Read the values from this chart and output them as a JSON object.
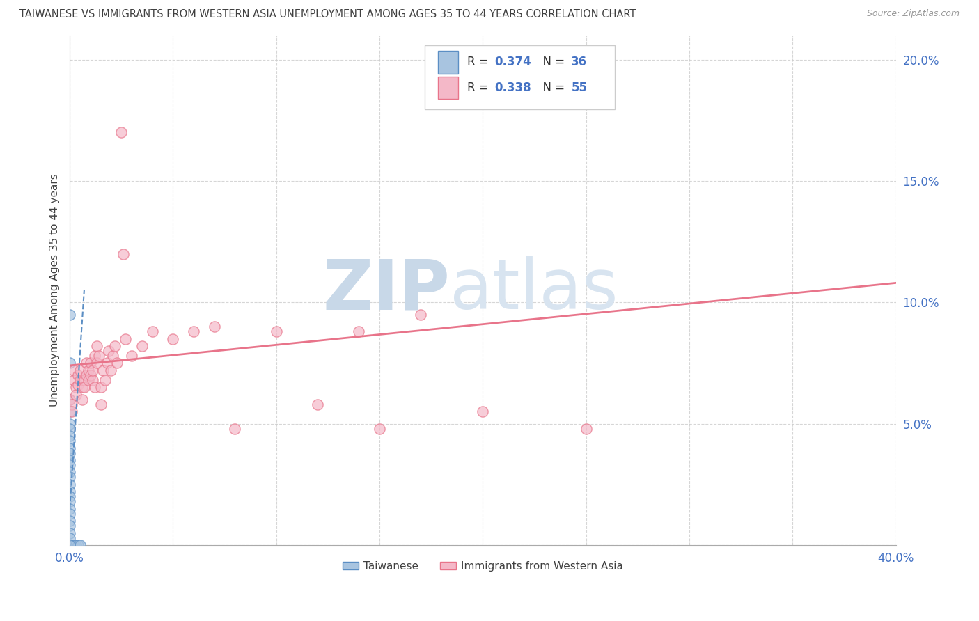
{
  "title": "TAIWANESE VS IMMIGRANTS FROM WESTERN ASIA UNEMPLOYMENT AMONG AGES 35 TO 44 YEARS CORRELATION CHART",
  "source": "Source: ZipAtlas.com",
  "ylabel": "Unemployment Among Ages 35 to 44 years",
  "xlim": [
    0.0,
    0.4
  ],
  "ylim": [
    0.0,
    0.21
  ],
  "xticks": [
    0.0,
    0.05,
    0.1,
    0.15,
    0.2,
    0.25,
    0.3,
    0.35,
    0.4
  ],
  "yticks": [
    0.0,
    0.05,
    0.1,
    0.15,
    0.2
  ],
  "taiwanese_R": 0.374,
  "taiwanese_N": 36,
  "western_asia_R": 0.338,
  "western_asia_N": 55,
  "taiwanese_color": "#a8c4e0",
  "western_asia_color": "#f4b8c8",
  "taiwanese_line_color": "#5b8ec4",
  "western_asia_line_color": "#e8748a",
  "blue_text_color": "#4472c4",
  "title_color": "#404040",
  "watermark_zip_color": "#c8d8e8",
  "watermark_atlas_color": "#d8e4f0",
  "background_color": "#ffffff",
  "taiwanese_points": [
    [
      0.0,
      0.095
    ],
    [
      0.0,
      0.075
    ],
    [
      0.0,
      0.06
    ],
    [
      0.0,
      0.055
    ],
    [
      0.0,
      0.05
    ],
    [
      0.0,
      0.048
    ],
    [
      0.0,
      0.045
    ],
    [
      0.0,
      0.043
    ],
    [
      0.0,
      0.04
    ],
    [
      0.0,
      0.038
    ],
    [
      0.0,
      0.035
    ],
    [
      0.0,
      0.033
    ],
    [
      0.0,
      0.03
    ],
    [
      0.0,
      0.028
    ],
    [
      0.0,
      0.025
    ],
    [
      0.0,
      0.022
    ],
    [
      0.0,
      0.02
    ],
    [
      0.0,
      0.018
    ],
    [
      0.0,
      0.015
    ],
    [
      0.0,
      0.013
    ],
    [
      0.0,
      0.01
    ],
    [
      0.0,
      0.008
    ],
    [
      0.0,
      0.005
    ],
    [
      0.0,
      0.003
    ],
    [
      0.0,
      0.0
    ],
    [
      0.0,
      0.0
    ],
    [
      0.0,
      0.0
    ],
    [
      0.0,
      0.0
    ],
    [
      0.001,
      0.0
    ],
    [
      0.001,
      0.0
    ],
    [
      0.002,
      0.0
    ],
    [
      0.002,
      0.0
    ],
    [
      0.003,
      0.0
    ],
    [
      0.004,
      0.0
    ],
    [
      0.005,
      0.0
    ],
    [
      0.0,
      0.0
    ]
  ],
  "western_asia_points": [
    [
      0.0,
      0.06
    ],
    [
      0.001,
      0.058
    ],
    [
      0.001,
      0.055
    ],
    [
      0.002,
      0.072
    ],
    [
      0.002,
      0.068
    ],
    [
      0.003,
      0.065
    ],
    [
      0.003,
      0.062
    ],
    [
      0.004,
      0.07
    ],
    [
      0.004,
      0.066
    ],
    [
      0.005,
      0.068
    ],
    [
      0.005,
      0.072
    ],
    [
      0.006,
      0.065
    ],
    [
      0.006,
      0.06
    ],
    [
      0.007,
      0.068
    ],
    [
      0.007,
      0.065
    ],
    [
      0.008,
      0.075
    ],
    [
      0.008,
      0.07
    ],
    [
      0.009,
      0.068
    ],
    [
      0.009,
      0.072
    ],
    [
      0.01,
      0.07
    ],
    [
      0.01,
      0.075
    ],
    [
      0.011,
      0.068
    ],
    [
      0.011,
      0.072
    ],
    [
      0.012,
      0.078
    ],
    [
      0.012,
      0.065
    ],
    [
      0.013,
      0.082
    ],
    [
      0.013,
      0.075
    ],
    [
      0.014,
      0.078
    ],
    [
      0.015,
      0.065
    ],
    [
      0.015,
      0.058
    ],
    [
      0.016,
      0.072
    ],
    [
      0.017,
      0.068
    ],
    [
      0.018,
      0.075
    ],
    [
      0.019,
      0.08
    ],
    [
      0.02,
      0.072
    ],
    [
      0.021,
      0.078
    ],
    [
      0.022,
      0.082
    ],
    [
      0.023,
      0.075
    ],
    [
      0.025,
      0.17
    ],
    [
      0.026,
      0.12
    ],
    [
      0.027,
      0.085
    ],
    [
      0.03,
      0.078
    ],
    [
      0.035,
      0.082
    ],
    [
      0.04,
      0.088
    ],
    [
      0.05,
      0.085
    ],
    [
      0.06,
      0.088
    ],
    [
      0.07,
      0.09
    ],
    [
      0.08,
      0.048
    ],
    [
      0.1,
      0.088
    ],
    [
      0.12,
      0.058
    ],
    [
      0.14,
      0.088
    ],
    [
      0.15,
      0.048
    ],
    [
      0.17,
      0.095
    ],
    [
      0.2,
      0.055
    ],
    [
      0.25,
      0.048
    ]
  ],
  "taiwanese_trend_x": [
    0.0,
    0.007
  ],
  "taiwanese_trend_y": [
    0.015,
    0.105
  ],
  "western_asia_trend_x": [
    0.0,
    0.4
  ],
  "western_asia_trend_y": [
    0.074,
    0.108
  ]
}
